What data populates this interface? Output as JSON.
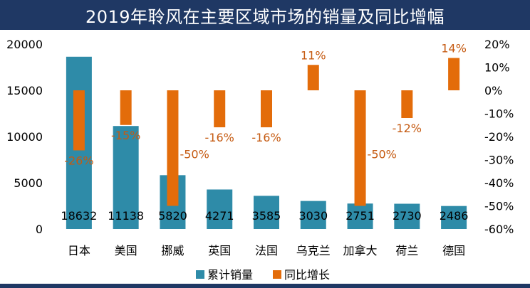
{
  "title": "2019年聆风在主要区域市场的销量及同比增幅",
  "colors": {
    "volume": "#2e8ba8",
    "yoy": "#e36c0a",
    "header": "#1f3864",
    "yoy_label": "#c55a11"
  },
  "chart_data": {
    "type": "bar",
    "categories": [
      "日本",
      "美国",
      "挪威",
      "英国",
      "法国",
      "乌克兰",
      "加拿大",
      "荷兰",
      "德国"
    ],
    "series": [
      {
        "name": "累计销量",
        "axis": "left",
        "values": [
          18632,
          11138,
          5820,
          4271,
          3585,
          3030,
          2751,
          2730,
          2486
        ],
        "labels": [
          "18632",
          "11138",
          "5820",
          "4271",
          "3585",
          "3030",
          "2751",
          "2730",
          "2486"
        ]
      },
      {
        "name": "同比增长",
        "axis": "right",
        "values": [
          -26,
          -15,
          -50,
          -16,
          -16,
          11,
          -50,
          -12,
          14
        ],
        "labels": [
          "-26%",
          "-15%",
          "-50%",
          "-16%",
          "-16%",
          "11%",
          "-50%",
          "-12%",
          "14%"
        ]
      }
    ],
    "left_axis": {
      "min": 0,
      "max": 20000,
      "ticks": [
        "0",
        "5000",
        "10000",
        "15000",
        "20000"
      ]
    },
    "right_axis": {
      "min": -60,
      "max": 20,
      "unit": "%",
      "ticks": [
        "-60%",
        "-50%",
        "-40%",
        "-30%",
        "-20%",
        "-10%",
        "0%",
        "10%",
        "20%"
      ]
    },
    "legend": {
      "position": "bottom",
      "items": [
        "累计销量",
        "同比增长"
      ]
    },
    "grid": false
  }
}
